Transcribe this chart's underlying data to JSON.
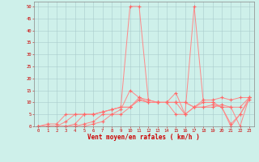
{
  "x": [
    0,
    1,
    2,
    3,
    4,
    5,
    6,
    7,
    8,
    9,
    10,
    11,
    12,
    13,
    14,
    15,
    16,
    17,
    18,
    19,
    20,
    21,
    22,
    23
  ],
  "line1": [
    0,
    1,
    1,
    5,
    5,
    5,
    5,
    6,
    7,
    8,
    50,
    50,
    11,
    10,
    10,
    14,
    5,
    50,
    10,
    10,
    8,
    1,
    5,
    12
  ],
  "line2": [
    0,
    0,
    0,
    0,
    1,
    5,
    5,
    6,
    7,
    8,
    8,
    12,
    11,
    10,
    10,
    10,
    10,
    8,
    11,
    11,
    12,
    11,
    12,
    12
  ],
  "line3": [
    0,
    0,
    0,
    2,
    5,
    5,
    5,
    6,
    7,
    8,
    8,
    11,
    10,
    10,
    10,
    10,
    10,
    8,
    8,
    9,
    8,
    8,
    8,
    12
  ],
  "line4": [
    0,
    0,
    0,
    0,
    0,
    1,
    2,
    5,
    5,
    7,
    15,
    12,
    10,
    10,
    10,
    5,
    5,
    8,
    10,
    10,
    8,
    0,
    5,
    11
  ],
  "line5": [
    0,
    0,
    0,
    0,
    0,
    0,
    1,
    2,
    5,
    5,
    8,
    11,
    10,
    10,
    10,
    10,
    5,
    8,
    8,
    8,
    9,
    8,
    0,
    12
  ],
  "background": "#cef0ea",
  "grid_color": "#aacccc",
  "line_color": "#ff8888",
  "marker_color": "#ff6666",
  "xlabel": "Vent moyen/en rafales ( km/h )",
  "xlabel_color": "#cc0000",
  "tick_color": "#cc0000",
  "spine_color": "#888888",
  "ylim": [
    0,
    52
  ],
  "xlim": [
    -0.5,
    23.5
  ],
  "yticks": [
    0,
    5,
    10,
    15,
    20,
    25,
    30,
    35,
    40,
    45,
    50
  ],
  "xticks": [
    0,
    1,
    2,
    3,
    4,
    5,
    6,
    7,
    8,
    9,
    10,
    11,
    12,
    13,
    14,
    15,
    16,
    17,
    18,
    19,
    20,
    21,
    22,
    23
  ]
}
